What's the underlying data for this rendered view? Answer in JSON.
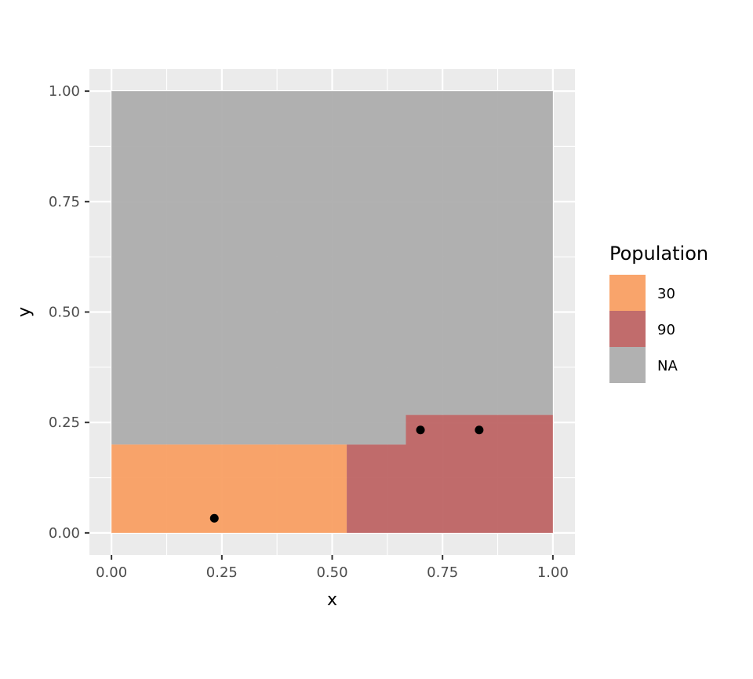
{
  "chart_data": {
    "type": "map",
    "title": "",
    "xlabel": "x",
    "ylabel": "y",
    "xlim": [
      -0.05,
      1.05
    ],
    "ylim": [
      -0.05,
      1.05
    ],
    "grid": true,
    "x_ticks": [
      0.0,
      0.25,
      0.5,
      0.75,
      1.0
    ],
    "x_tick_labels": [
      "0.00",
      "0.25",
      "0.50",
      "0.75",
      "1.00"
    ],
    "y_ticks": [
      0.0,
      0.25,
      0.5,
      0.75,
      1.0
    ],
    "y_tick_labels": [
      "0.00",
      "0.25",
      "0.50",
      "0.75",
      "1.00"
    ],
    "regions": [
      {
        "name": "NA region",
        "population": "NA",
        "polygon": [
          [
            0,
            0.2
          ],
          [
            0.667,
            0.2
          ],
          [
            0.667,
            0.267
          ],
          [
            1,
            0.267
          ],
          [
            1,
            1
          ],
          [
            0,
            1
          ]
        ]
      },
      {
        "name": "30 region",
        "population": "30",
        "polygon": [
          [
            0,
            0
          ],
          [
            0.533,
            0
          ],
          [
            0.533,
            0.2
          ],
          [
            0,
            0.2
          ]
        ]
      },
      {
        "name": "90 region",
        "population": "90",
        "polygon": [
          [
            0.533,
            0
          ],
          [
            1,
            0
          ],
          [
            1,
            0.267
          ],
          [
            0.667,
            0.267
          ],
          [
            0.667,
            0.2
          ],
          [
            0.533,
            0.2
          ]
        ]
      }
    ],
    "points": [
      {
        "x": 0.233,
        "y": 0.033
      },
      {
        "x": 0.7,
        "y": 0.233
      },
      {
        "x": 0.833,
        "y": 0.233
      }
    ],
    "legend": {
      "title": "Population",
      "placement": "right",
      "entries": [
        {
          "label": "30",
          "color": "#f99c5e"
        },
        {
          "label": "90",
          "color": "#bc5f5f"
        },
        {
          "label": "NA",
          "color": "#aaaaaa"
        }
      ]
    }
  },
  "colors": {
    "panel_background": "#ebebeb",
    "grid_major": "#ffffff",
    "point": "#000000"
  }
}
